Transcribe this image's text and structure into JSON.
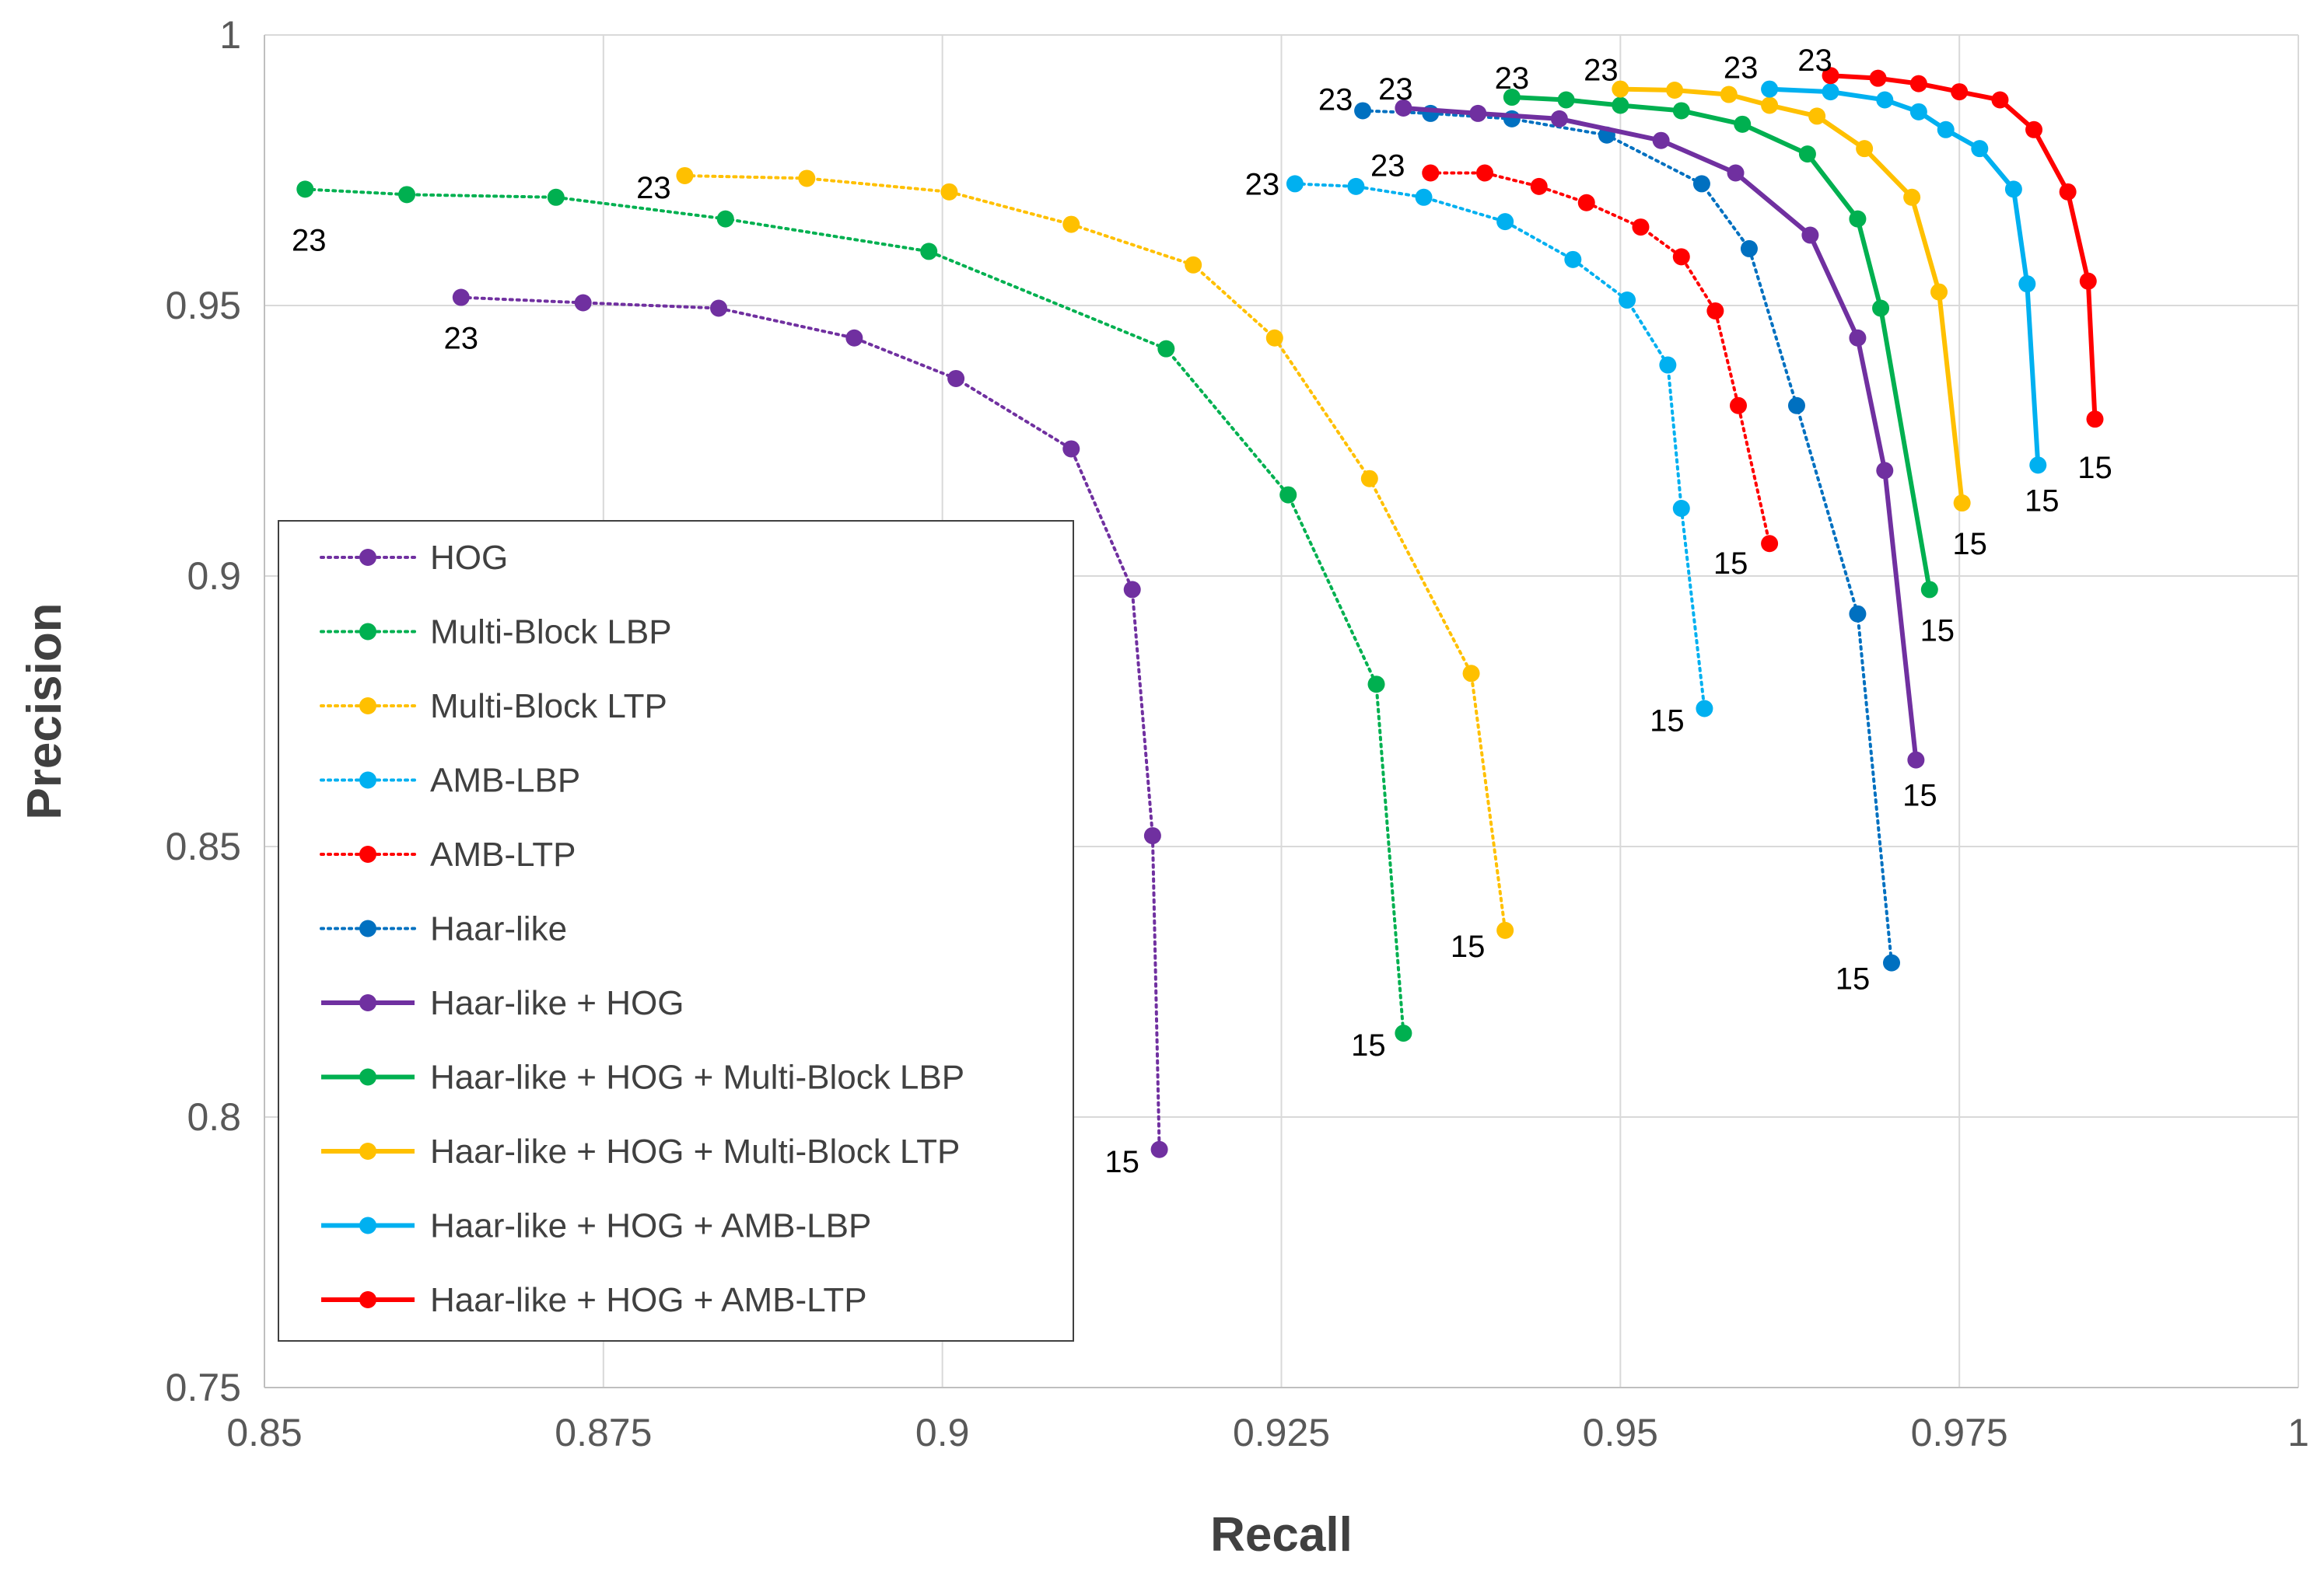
{
  "chart_data": {
    "type": "line",
    "title": "",
    "xlabel": "Recall",
    "ylabel": "Precision",
    "xlim": [
      0.85,
      1
    ],
    "ylim": [
      0.75,
      1
    ],
    "x_ticks": [
      0.85,
      0.875,
      0.9,
      0.925,
      0.95,
      0.975,
      1
    ],
    "y_ticks": [
      0.75,
      0.8,
      0.85,
      0.9,
      0.95,
      1
    ],
    "x_tick_labels": [
      "0.85",
      "0.875",
      "0.9",
      "0.925",
      "0.95",
      "0.975",
      "1"
    ],
    "y_tick_labels": [
      "0.75",
      "0.8",
      "0.85",
      "0.9",
      "0.95",
      "1"
    ],
    "grid": true,
    "legend_position": "left",
    "series": [
      {
        "name": "HOG",
        "color": "#7030A0",
        "style": "dotted",
        "start_label": "23",
        "end_label": "15",
        "x": [
          0.8645,
          0.8735,
          0.8835,
          0.8935,
          0.901,
          0.9095,
          0.914,
          0.9155,
          0.916
        ],
        "y": [
          0.9515,
          0.9505,
          0.9495,
          0.944,
          0.9365,
          0.9235,
          0.8975,
          0.852,
          0.794
        ]
      },
      {
        "name": "Multi-Block LBP",
        "color": "#00B050",
        "style": "dotted",
        "start_label": "23",
        "end_label": "15",
        "x": [
          0.853,
          0.8605,
          0.8715,
          0.884,
          0.899,
          0.9165,
          0.9255,
          0.932,
          0.934
        ],
        "y": [
          0.9715,
          0.9705,
          0.97,
          0.966,
          0.96,
          0.942,
          0.915,
          0.88,
          0.8155
        ]
      },
      {
        "name": "Multi-Block LTP",
        "color": "#FFC000",
        "style": "dotted",
        "start_label": "23",
        "end_label": "15",
        "x": [
          0.881,
          0.89,
          0.9005,
          0.9095,
          0.9185,
          0.9245,
          0.9315,
          0.939,
          0.9415
        ],
        "y": [
          0.974,
          0.9735,
          0.971,
          0.965,
          0.9575,
          0.944,
          0.918,
          0.882,
          0.8345
        ]
      },
      {
        "name": "AMB-LBP",
        "color": "#00B0F0",
        "style": "dotted",
        "start_label": "23",
        "end_label": "15",
        "x": [
          0.926,
          0.9305,
          0.9355,
          0.9415,
          0.9465,
          0.9505,
          0.9535,
          0.9545,
          0.9562
        ],
        "y": [
          0.9725,
          0.972,
          0.97,
          0.9655,
          0.9585,
          0.951,
          0.939,
          0.9125,
          0.8755
        ]
      },
      {
        "name": "AMB-LTP",
        "color": "#FF0000",
        "style": "dotted",
        "start_label": "23",
        "end_label": "15",
        "x": [
          0.936,
          0.94,
          0.944,
          0.9475,
          0.9515,
          0.9545,
          0.957,
          0.9587,
          0.961
        ],
        "y": [
          0.9745,
          0.9745,
          0.972,
          0.969,
          0.9645,
          0.959,
          0.949,
          0.9315,
          0.906
        ]
      },
      {
        "name": "Haar-like",
        "color": "#0070C0",
        "style": "dotted",
        "start_label": "23",
        "end_label": "15",
        "x": [
          0.931,
          0.936,
          0.942,
          0.949,
          0.956,
          0.9595,
          0.963,
          0.9675,
          0.97
        ],
        "y": [
          0.986,
          0.9855,
          0.9845,
          0.9815,
          0.9725,
          0.9605,
          0.9315,
          0.893,
          0.8285
        ]
      },
      {
        "name": "Haar-like + HOG",
        "color": "#7030A0",
        "style": "solid",
        "start_label": "23",
        "end_label": "15",
        "x": [
          0.934,
          0.9395,
          0.9455,
          0.953,
          0.9585,
          0.964,
          0.9675,
          0.9695,
          0.9718
        ],
        "y": [
          0.9865,
          0.9855,
          0.9845,
          0.9805,
          0.9745,
          0.963,
          0.944,
          0.9195,
          0.866
        ]
      },
      {
        "name": "Haar-like + HOG + Multi-Block LBP",
        "color": "#00B050",
        "style": "solid",
        "start_label": "23",
        "end_label": "15",
        "x": [
          0.942,
          0.946,
          0.95,
          0.9545,
          0.959,
          0.9638,
          0.9675,
          0.9692,
          0.9728
        ],
        "y": [
          0.9885,
          0.988,
          0.987,
          0.986,
          0.9835,
          0.978,
          0.966,
          0.9495,
          0.8975
        ]
      },
      {
        "name": "Haar-like + HOG + Multi-Block LTP",
        "color": "#FFC000",
        "style": "solid",
        "start_label": "23",
        "end_label": "15",
        "x": [
          0.95,
          0.954,
          0.958,
          0.961,
          0.9645,
          0.968,
          0.9715,
          0.9735,
          0.9752
        ],
        "y": [
          0.99,
          0.9898,
          0.989,
          0.987,
          0.985,
          0.979,
          0.97,
          0.9525,
          0.9135
        ]
      },
      {
        "name": "Haar-like + HOG + AMB-LBP",
        "color": "#00B0F0",
        "style": "solid",
        "start_label": "23",
        "end_label": "15",
        "x": [
          0.961,
          0.9655,
          0.9695,
          0.972,
          0.974,
          0.9765,
          0.979,
          0.98,
          0.9808
        ],
        "y": [
          0.99,
          0.9895,
          0.988,
          0.9858,
          0.9825,
          0.979,
          0.9715,
          0.954,
          0.9205
        ]
      },
      {
        "name": "Haar-like + HOG + AMB-LTP",
        "color": "#FF0000",
        "style": "solid",
        "start_label": "23",
        "end_label": "15",
        "x": [
          0.9655,
          0.969,
          0.972,
          0.975,
          0.978,
          0.9805,
          0.983,
          0.9845,
          0.985
        ],
        "y": [
          0.9925,
          0.992,
          0.991,
          0.9895,
          0.988,
          0.9825,
          0.971,
          0.9545,
          0.929
        ]
      }
    ]
  }
}
